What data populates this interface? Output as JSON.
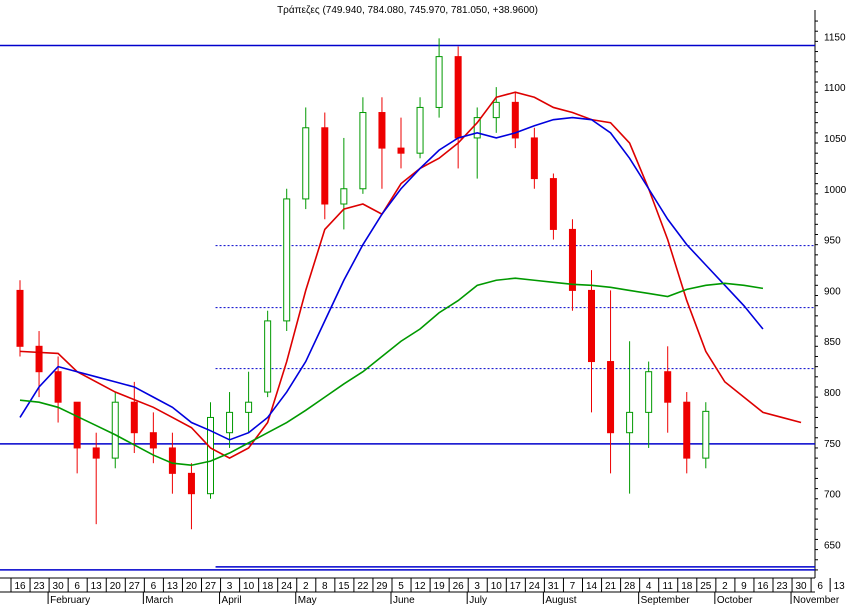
{
  "chart_data": {
    "type": "candlestick",
    "title": "Τράπεζες (749.940, 784.080, 745.970, 781.050, +38.9600)",
    "xlabel": "",
    "ylabel": "",
    "ylim": [
      620,
      1168
    ],
    "y_ticks": [
      650,
      700,
      750,
      800,
      850,
      900,
      950,
      1000,
      1050,
      1100,
      1150
    ],
    "grid": false,
    "x_day_labels": [
      "16",
      "23",
      "30",
      "6",
      "13",
      "20",
      "27",
      "6",
      "13",
      "20",
      "27",
      "3",
      "10",
      "18",
      "24",
      "2",
      "8",
      "15",
      "22",
      "29",
      "5",
      "12",
      "19",
      "26",
      "3",
      "10",
      "17",
      "24",
      "31",
      "7",
      "14",
      "21",
      "28",
      "4",
      "11",
      "18",
      "25",
      "2",
      "9",
      "16",
      "23",
      "30",
      "6",
      "13"
    ],
    "x_month_labels": [
      {
        "label": "February",
        "week_index": 2
      },
      {
        "label": "March",
        "week_index": 7
      },
      {
        "label": "April",
        "week_index": 11
      },
      {
        "label": "May",
        "week_index": 15
      },
      {
        "label": "June",
        "week_index": 20
      },
      {
        "label": "July",
        "week_index": 24
      },
      {
        "label": "August",
        "week_index": 28
      },
      {
        "label": "September",
        "week_index": 33
      },
      {
        "label": "October",
        "week_index": 37
      },
      {
        "label": "November",
        "week_index": 41
      }
    ],
    "reference_lines": [
      {
        "name": "resistance",
        "value": 1141,
        "color": "#0000cc",
        "style": "solid",
        "from_week": 0
      },
      {
        "name": "level-944",
        "value": 944,
        "color": "#0000cc",
        "style": "dotted",
        "from_week": 11
      },
      {
        "name": "level-883",
        "value": 883,
        "color": "#0000cc",
        "style": "dotted",
        "from_week": 11
      },
      {
        "name": "level-823",
        "value": 823,
        "color": "#0000cc",
        "style": "dotted",
        "from_week": 11
      },
      {
        "name": "support",
        "value": 749,
        "color": "#0000cc",
        "style": "solid",
        "from_week": 0
      },
      {
        "name": "low-band-1",
        "value": 628,
        "color": "#0000cc",
        "style": "solid",
        "from_week": 11
      },
      {
        "name": "low-band-2",
        "value": 625,
        "color": "#0000cc",
        "style": "solid",
        "from_week": 0
      }
    ],
    "moving_averages": [
      {
        "color": "#dd0000",
        "points": [
          [
            0,
            840
          ],
          [
            2,
            838
          ],
          [
            3,
            820
          ],
          [
            5,
            800
          ],
          [
            7,
            785
          ],
          [
            8,
            775
          ],
          [
            9,
            765
          ],
          [
            10,
            745
          ],
          [
            11,
            735
          ],
          [
            12,
            745
          ],
          [
            13,
            770
          ],
          [
            14,
            830
          ],
          [
            15,
            900
          ],
          [
            16,
            960
          ],
          [
            17,
            980
          ],
          [
            18,
            985
          ],
          [
            19,
            975
          ],
          [
            20,
            1005
          ],
          [
            21,
            1020
          ],
          [
            22,
            1030
          ],
          [
            23,
            1045
          ],
          [
            24,
            1065
          ],
          [
            25,
            1090
          ],
          [
            26,
            1095
          ],
          [
            27,
            1090
          ],
          [
            28,
            1080
          ],
          [
            29,
            1075
          ],
          [
            30,
            1068
          ],
          [
            31,
            1065
          ],
          [
            32,
            1045
          ],
          [
            33,
            1000
          ],
          [
            34,
            950
          ],
          [
            35,
            890
          ],
          [
            36,
            840
          ],
          [
            37,
            810
          ],
          [
            38,
            795
          ],
          [
            39,
            780
          ],
          [
            40,
            775
          ],
          [
            41,
            770
          ]
        ]
      },
      {
        "color": "#0000dd",
        "points": [
          [
            0,
            775
          ],
          [
            1,
            805
          ],
          [
            2,
            825
          ],
          [
            3,
            820
          ],
          [
            4,
            815
          ],
          [
            5,
            810
          ],
          [
            6,
            805
          ],
          [
            7,
            795
          ],
          [
            8,
            785
          ],
          [
            9,
            770
          ],
          [
            10,
            762
          ],
          [
            11,
            753
          ],
          [
            12,
            760
          ],
          [
            13,
            775
          ],
          [
            14,
            800
          ],
          [
            15,
            830
          ],
          [
            16,
            870
          ],
          [
            17,
            910
          ],
          [
            18,
            945
          ],
          [
            19,
            975
          ],
          [
            20,
            1000
          ],
          [
            21,
            1020
          ],
          [
            22,
            1038
          ],
          [
            23,
            1050
          ],
          [
            24,
            1055
          ],
          [
            25,
            1050
          ],
          [
            26,
            1055
          ],
          [
            27,
            1062
          ],
          [
            28,
            1068
          ],
          [
            29,
            1070
          ],
          [
            30,
            1068
          ],
          [
            31,
            1055
          ],
          [
            32,
            1030
          ],
          [
            33,
            1000
          ],
          [
            34,
            970
          ],
          [
            35,
            945
          ],
          [
            36,
            925
          ],
          [
            37,
            905
          ],
          [
            38,
            885
          ],
          [
            39,
            862
          ]
        ]
      },
      {
        "color": "#009900",
        "points": [
          [
            0,
            792
          ],
          [
            1,
            790
          ],
          [
            2,
            785
          ],
          [
            3,
            776
          ],
          [
            4,
            767
          ],
          [
            5,
            758
          ],
          [
            6,
            748
          ],
          [
            7,
            738
          ],
          [
            8,
            730
          ],
          [
            9,
            728
          ],
          [
            10,
            732
          ],
          [
            11,
            740
          ],
          [
            12,
            750
          ],
          [
            13,
            760
          ],
          [
            14,
            770
          ],
          [
            15,
            782
          ],
          [
            16,
            795
          ],
          [
            17,
            808
          ],
          [
            18,
            820
          ],
          [
            19,
            835
          ],
          [
            20,
            850
          ],
          [
            21,
            862
          ],
          [
            22,
            878
          ],
          [
            23,
            890
          ],
          [
            24,
            905
          ],
          [
            25,
            910
          ],
          [
            26,
            912
          ],
          [
            27,
            910
          ],
          [
            28,
            908
          ],
          [
            29,
            906
          ],
          [
            30,
            905
          ],
          [
            31,
            903
          ],
          [
            32,
            900
          ],
          [
            33,
            897
          ],
          [
            34,
            894
          ],
          [
            35,
            901
          ],
          [
            36,
            905
          ],
          [
            37,
            907
          ],
          [
            38,
            905
          ],
          [
            39,
            902
          ]
        ]
      }
    ],
    "candles_weekly": [
      {
        "w": 0,
        "o": 900,
        "h": 910,
        "l": 835,
        "c": 845
      },
      {
        "w": 1,
        "o": 845,
        "h": 860,
        "l": 795,
        "c": 820
      },
      {
        "w": 2,
        "o": 820,
        "h": 835,
        "l": 770,
        "c": 790
      },
      {
        "w": 3,
        "o": 790,
        "h": 790,
        "l": 720,
        "c": 745
      },
      {
        "w": 4,
        "o": 745,
        "h": 760,
        "l": 670,
        "c": 735
      },
      {
        "w": 5,
        "o": 735,
        "h": 800,
        "l": 725,
        "c": 790
      },
      {
        "w": 6,
        "o": 790,
        "h": 810,
        "l": 740,
        "c": 760
      },
      {
        "w": 7,
        "o": 760,
        "h": 780,
        "l": 730,
        "c": 745
      },
      {
        "w": 8,
        "o": 745,
        "h": 760,
        "l": 700,
        "c": 720
      },
      {
        "w": 9,
        "o": 720,
        "h": 730,
        "l": 665,
        "c": 700
      },
      {
        "w": 10,
        "o": 700,
        "h": 790,
        "l": 695,
        "c": 775
      },
      {
        "w": 11,
        "o": 760,
        "h": 800,
        "l": 745,
        "c": 780
      },
      {
        "w": 12,
        "o": 780,
        "h": 820,
        "l": 760,
        "c": 790
      },
      {
        "w": 13,
        "o": 800,
        "h": 880,
        "l": 795,
        "c": 870
      },
      {
        "w": 14,
        "o": 870,
        "h": 1000,
        "l": 860,
        "c": 990
      },
      {
        "w": 15,
        "o": 990,
        "h": 1080,
        "l": 980,
        "c": 1060
      },
      {
        "w": 16,
        "o": 1060,
        "h": 1075,
        "l": 970,
        "c": 985
      },
      {
        "w": 17,
        "o": 985,
        "h": 1050,
        "l": 960,
        "c": 1000
      },
      {
        "w": 18,
        "o": 1000,
        "h": 1090,
        "l": 995,
        "c": 1075
      },
      {
        "w": 19,
        "o": 1075,
        "h": 1090,
        "l": 1000,
        "c": 1040
      },
      {
        "w": 20,
        "o": 1040,
        "h": 1070,
        "l": 1020,
        "c": 1035
      },
      {
        "w": 21,
        "o": 1035,
        "h": 1090,
        "l": 1030,
        "c": 1080
      },
      {
        "w": 22,
        "o": 1080,
        "h": 1148,
        "l": 1070,
        "c": 1130
      },
      {
        "w": 23,
        "o": 1130,
        "h": 1140,
        "l": 1020,
        "c": 1050
      },
      {
        "w": 24,
        "o": 1050,
        "h": 1080,
        "l": 1010,
        "c": 1070
      },
      {
        "w": 25,
        "o": 1070,
        "h": 1100,
        "l": 1055,
        "c": 1085
      },
      {
        "w": 26,
        "o": 1085,
        "h": 1095,
        "l": 1040,
        "c": 1050
      },
      {
        "w": 27,
        "o": 1050,
        "h": 1060,
        "l": 1000,
        "c": 1010
      },
      {
        "w": 28,
        "o": 1010,
        "h": 1015,
        "l": 950,
        "c": 960
      },
      {
        "w": 29,
        "o": 960,
        "h": 970,
        "l": 880,
        "c": 900
      },
      {
        "w": 30,
        "o": 900,
        "h": 920,
        "l": 780,
        "c": 830
      },
      {
        "w": 31,
        "o": 830,
        "h": 900,
        "l": 720,
        "c": 760
      },
      {
        "w": 32,
        "o": 760,
        "h": 850,
        "l": 700,
        "c": 780
      },
      {
        "w": 33,
        "o": 780,
        "h": 830,
        "l": 745,
        "c": 820
      },
      {
        "w": 34,
        "o": 820,
        "h": 845,
        "l": 760,
        "c": 790
      },
      {
        "w": 35,
        "o": 790,
        "h": 800,
        "l": 720,
        "c": 735
      },
      {
        "w": 36,
        "o": 735,
        "h": 790,
        "l": 725,
        "c": 781
      }
    ]
  }
}
